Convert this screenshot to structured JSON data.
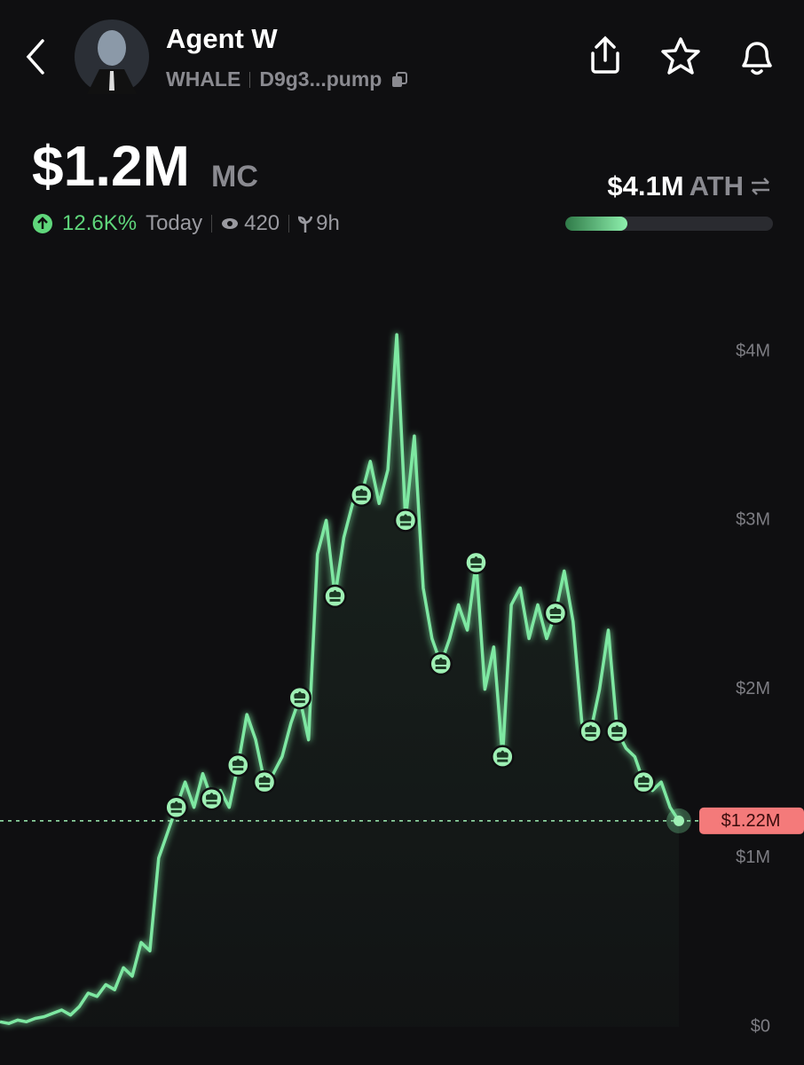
{
  "header": {
    "name": "Agent W",
    "ticker": "WHALE",
    "address": "D9g3...pump"
  },
  "stats": {
    "market_cap": "$1.2M",
    "market_cap_unit": "MC",
    "change": "12.6K%",
    "change_period": "Today",
    "views": "420",
    "age": "9h",
    "ath": "$4.1M",
    "ath_unit": "ATH",
    "ath_progress_percent": 30
  },
  "chart_data": {
    "type": "line",
    "color": "#7ee8a2",
    "categories": [
      null,
      null,
      null,
      null,
      null,
      null,
      null,
      null,
      null,
      null,
      null,
      null,
      null,
      null,
      null,
      null,
      null,
      null,
      null,
      null,
      null,
      null,
      null,
      null,
      null,
      null,
      null,
      null,
      null,
      null,
      null,
      null,
      null,
      null,
      null,
      null,
      null,
      null,
      null,
      null,
      null,
      null,
      null,
      null,
      null,
      null,
      null,
      null,
      null,
      null,
      null,
      null,
      null,
      null,
      null,
      null,
      null,
      null,
      null,
      null,
      null,
      null,
      null,
      null,
      null,
      null,
      null,
      null,
      null,
      null,
      null,
      null,
      null,
      null,
      null,
      null,
      null,
      null
    ],
    "values": [
      30000,
      20000,
      40000,
      30000,
      50000,
      60000,
      80000,
      100000,
      70000,
      120000,
      200000,
      180000,
      250000,
      220000,
      350000,
      300000,
      500000,
      450000,
      1000000,
      1150000,
      1300000,
      1450000,
      1300000,
      1500000,
      1350000,
      1400000,
      1300000,
      1550000,
      1850000,
      1700000,
      1450000,
      1500000,
      1600000,
      1800000,
      1950000,
      1700000,
      2800000,
      3000000,
      2550000,
      2900000,
      3100000,
      3150000,
      3350000,
      3100000,
      3300000,
      4100000,
      3000000,
      3500000,
      2600000,
      2300000,
      2150000,
      2300000,
      2500000,
      2350000,
      2750000,
      2000000,
      2250000,
      1600000,
      2500000,
      2600000,
      2300000,
      2500000,
      2300000,
      2450000,
      2700000,
      2400000,
      1800000,
      1750000,
      2000000,
      2350000,
      1750000,
      1650000,
      1600000,
      1450000,
      1400000,
      1450000,
      1300000,
      1220000
    ],
    "trade_points": [
      20,
      24,
      27,
      30,
      34,
      38,
      41,
      46,
      50,
      54,
      57,
      63,
      67,
      70,
      73
    ],
    "current": {
      "value": 1220000,
      "label": "$1.22M"
    },
    "ylim": [
      0,
      4500000
    ],
    "yticks": [
      {
        "value": 0,
        "label": "$0"
      },
      {
        "value": 1000000,
        "label": "$1M"
      },
      {
        "value": 2000000,
        "label": "$2M"
      },
      {
        "value": 3000000,
        "label": "$3M"
      },
      {
        "value": 4000000,
        "label": "$4M"
      }
    ]
  }
}
